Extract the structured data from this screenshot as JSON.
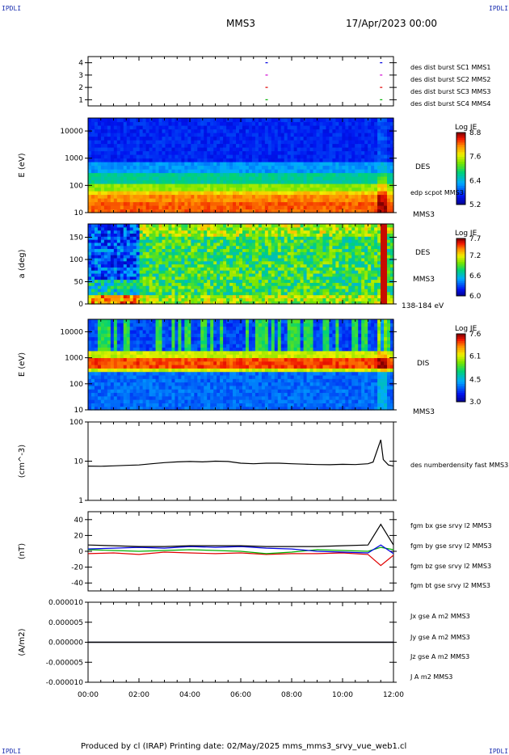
{
  "page": {
    "corner_text": "IPDLI",
    "title": "MMS3",
    "date": "17/Apr/2023 00:00",
    "footer": "Produced by cl (IRAP)   Printing date: 02/May/2025   mms_mms3_srvy_vue_web1.cl"
  },
  "colors": {
    "black": "#000000",
    "red": "#e00000",
    "green": "#00b000",
    "blue": "#0000e0",
    "magenta": "#d000d0"
  },
  "time_axis": {
    "ticks": [
      "00:00",
      "02:00",
      "04:00",
      "06:00",
      "08:00",
      "10:00",
      "12:00"
    ],
    "range_hours": [
      0,
      12
    ]
  },
  "chart_data": [
    {
      "type": "scatter",
      "panel": "burst",
      "ylim": [
        0.5,
        4.5
      ],
      "yticks": [
        "1",
        "2",
        "3",
        "4"
      ],
      "series": [
        {
          "name": "des dist burst SC1 MMS1",
          "color": "#0000e0",
          "level": 4,
          "x_hours": [
            7.0,
            11.5
          ]
        },
        {
          "name": "des dist burst SC2 MMS2",
          "color": "#d000d0",
          "level": 3,
          "x_hours": [
            7.0,
            11.5
          ]
        },
        {
          "name": "des dist burst SC3 MMS3",
          "color": "#e00000",
          "level": 2,
          "x_hours": [
            7.0,
            11.5
          ]
        },
        {
          "name": "des dist burst SC4 MMS4",
          "color": "#00b000",
          "level": 1,
          "x_hours": [
            7.0,
            11.5
          ]
        }
      ]
    },
    {
      "type": "heatmap",
      "panel": "des_energy",
      "ylabel": "E (eV)",
      "yscale": "log",
      "ylim": [
        10,
        30000
      ],
      "yticks": [
        "10",
        "100",
        "1000",
        "10000"
      ],
      "right_labels": [
        "DES",
        "edp scpot MMS3",
        "MMS3"
      ],
      "colorbar": {
        "title": "Log JE",
        "ticks": [
          "8.8",
          "7.6",
          "6.4",
          "5.2"
        ],
        "range": [
          5.2,
          8.8
        ]
      }
    },
    {
      "type": "heatmap",
      "panel": "des_pitch",
      "ylabel": "a (deg)",
      "ylim": [
        0,
        180
      ],
      "yticks": [
        "0",
        "50",
        "100",
        "150"
      ],
      "right_labels": [
        "DES",
        "MMS3",
        "138-184 eV"
      ],
      "colorbar": {
        "title": "Log JE",
        "ticks": [
          "7.7",
          "7.2",
          "6.6",
          "6.0"
        ],
        "range": [
          6.0,
          7.7
        ]
      }
    },
    {
      "type": "heatmap",
      "panel": "dis_energy",
      "ylabel": "E (eV)",
      "yscale": "log",
      "ylim": [
        10,
        30000
      ],
      "yticks": [
        "10",
        "100",
        "1000",
        "10000"
      ],
      "right_labels": [
        "DIS",
        "MMS3"
      ],
      "colorbar": {
        "title": "Log JE",
        "ticks": [
          "7.6",
          "6.1",
          "4.5",
          "3.0"
        ],
        "range": [
          3.0,
          7.6
        ]
      }
    },
    {
      "type": "line",
      "panel": "density",
      "ylabel": "(cm^-3)",
      "yscale": "log",
      "ylim": [
        1,
        100
      ],
      "yticks": [
        "1",
        "10",
        "100"
      ],
      "series": [
        {
          "name": "des numberdensity fast MMS3",
          "color": "#000000",
          "x": [
            0,
            0.5,
            1,
            1.5,
            2,
            2.5,
            3,
            3.5,
            4,
            4.5,
            5,
            5.5,
            6,
            6.5,
            7,
            7.5,
            8,
            8.5,
            9,
            9.5,
            10,
            10.5,
            11,
            11.2,
            11.5,
            11.6,
            11.8,
            12
          ],
          "y": [
            7.5,
            7.4,
            7.6,
            7.8,
            8,
            8.6,
            9.2,
            9.6,
            9.8,
            9.6,
            10,
            9.8,
            8.9,
            8.6,
            8.9,
            8.9,
            8.6,
            8.4,
            8.2,
            8.1,
            8.3,
            8.2,
            8.6,
            9.5,
            35,
            11,
            8,
            7.5
          ]
        }
      ]
    },
    {
      "type": "line",
      "panel": "fgm",
      "ylabel": "(nT)",
      "ylim": [
        -50,
        50
      ],
      "yticks": [
        "-40",
        "-20",
        "0",
        "20",
        "40"
      ],
      "series": [
        {
          "name": "fgm bx gse srvy l2 MMS3",
          "color": "#e00000",
          "x": [
            0,
            1,
            2,
            3,
            4,
            5,
            6,
            7,
            8,
            9,
            10,
            11,
            11.5,
            12
          ],
          "y": [
            -3,
            -2,
            -4,
            -1,
            -2,
            -3,
            -2,
            -4,
            -3,
            -3,
            -2,
            -4,
            -18,
            -5
          ]
        },
        {
          "name": "fgm by gse srvy l2 MMS3",
          "color": "#00b000",
          "x": [
            0,
            1,
            2,
            3,
            4,
            5,
            6,
            7,
            8,
            9,
            10,
            11,
            11.5,
            12
          ],
          "y": [
            2,
            1,
            0,
            1,
            2,
            1,
            0,
            -3,
            -1,
            2,
            1,
            0,
            5,
            2
          ]
        },
        {
          "name": "fgm bz gse srvy l2 MMS3",
          "color": "#0000e0",
          "x": [
            0,
            1,
            2,
            3,
            4,
            5,
            6,
            7,
            8,
            9,
            10,
            11,
            11.5,
            12
          ],
          "y": [
            3,
            4,
            5,
            4,
            6,
            5,
            6,
            4,
            3,
            0,
            -1,
            -2,
            8,
            -3
          ]
        },
        {
          "name": "fgm bt gse srvy l2 MMS3",
          "color": "#000000",
          "x": [
            0,
            1,
            2,
            3,
            4,
            5,
            6,
            7,
            8,
            9,
            10,
            11,
            11.5,
            12
          ],
          "y": [
            8,
            7,
            6,
            6,
            7,
            7,
            7,
            6,
            6,
            6,
            7,
            8,
            34,
            8
          ]
        }
      ]
    },
    {
      "type": "line",
      "panel": "current",
      "ylabel": "(A/m2)",
      "ylim": [
        -1e-05,
        1e-05
      ],
      "yticks": [
        "-0.000010",
        "-0.000005",
        "0.000000",
        "0.000005",
        "0.000010"
      ],
      "series": [
        {
          "name": "Jx gse A m2 MMS3",
          "color": "#e00000",
          "x": [
            0,
            12
          ],
          "y": [
            0,
            0
          ]
        },
        {
          "name": "Jy gse A m2 MMS3",
          "color": "#00b000",
          "x": [
            0,
            12
          ],
          "y": [
            0,
            0
          ]
        },
        {
          "name": "Jz gse A m2 MMS3",
          "color": "#0000e0",
          "x": [
            0,
            12
          ],
          "y": [
            0,
            0
          ]
        },
        {
          "name": "J A m2 MMS3",
          "color": "#000000",
          "x": [
            0,
            12
          ],
          "y": [
            0,
            0
          ]
        }
      ]
    }
  ]
}
